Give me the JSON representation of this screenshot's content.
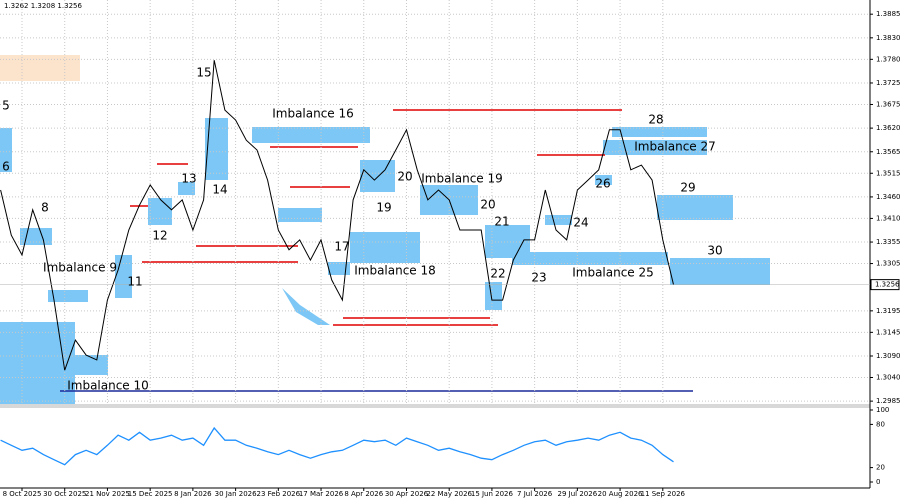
{
  "chart_data": [
    {
      "type": "line",
      "header": "1.3262 1.3208 1.3256",
      "categories": [
        null,
        null,
        "8 Oct 2025",
        null,
        null,
        null,
        "30 Oct 2025",
        null,
        null,
        null,
        "21 Nov 2025",
        null,
        null,
        null,
        "15 Dec 2025",
        null,
        null,
        null,
        "8 Jan 2026",
        null,
        null,
        null,
        "30 Jan 2026",
        null,
        null,
        null,
        "23 Feb 2026",
        null,
        null,
        null,
        "17 Mar 2026",
        null,
        null,
        null,
        "8 Apr 2026",
        null,
        null,
        null,
        "30 Apr 2026",
        null,
        null,
        null,
        "22 May 2026",
        null,
        null,
        null,
        "15 Jun 2026",
        null,
        null,
        null,
        "7 Jul 2026",
        null,
        null,
        null,
        "29 Jul 2026",
        null,
        null,
        null,
        "20 Aug 2026",
        null,
        null,
        null,
        "11 Sep 2026",
        null,
        null,
        null,
        null,
        null,
        null,
        null,
        null,
        null,
        null,
        null,
        null,
        null,
        null,
        null,
        null,
        null,
        null,
        null
      ],
      "values": [
        1.3476,
        1.3371,
        1.3325,
        1.343,
        1.336,
        1.322,
        1.3057,
        1.3127,
        1.3092,
        1.3081,
        1.322,
        1.329,
        1.3383,
        1.3441,
        1.3488,
        1.3453,
        1.343,
        1.3453,
        1.3383,
        1.3453,
        1.3778,
        1.3662,
        1.3639,
        1.3592,
        1.3569,
        1.3499,
        1.3383,
        1.3337,
        1.336,
        1.3313,
        1.336,
        1.3267,
        1.322,
        1.3453,
        1.3523,
        1.3499,
        1.3523,
        1.3569,
        1.3616,
        1.3523,
        1.3453,
        1.3476,
        1.3453,
        1.3383,
        1.3383,
        1.3383,
        1.322,
        1.322,
        1.3313,
        1.336,
        1.336,
        1.3476,
        1.3383,
        1.336,
        1.3476,
        1.3499,
        1.3523,
        1.3616,
        1.3616,
        1.3523,
        1.3534,
        1.3499,
        1.336,
        1.3256,
        null,
        null,
        null,
        null,
        null,
        null,
        null,
        null,
        null,
        null,
        null,
        null,
        null,
        null,
        null,
        null,
        null,
        null
      ],
      "color": "#000000",
      "ylim": [
        1.2976,
        1.3918
      ],
      "yticks": [
        1.3885,
        {
          "value": 1.383,
          "label": "1.3830"
        },
        {
          "value": 1.378,
          "label": "1.3780"
        },
        1.3725,
        1.3675,
        {
          "value": 1.362,
          "label": "1.3620"
        },
        1.3565,
        1.3515,
        {
          "value": 1.346,
          "label": "1.3460"
        },
        {
          "value": 1.341,
          "label": "1.3410"
        },
        1.3355,
        1.3305,
        1.3195,
        1.3145,
        {
          "value": 1.309,
          "label": "1.3090"
        },
        {
          "value": 1.304,
          "label": "1.3040"
        },
        1.2985
      ],
      "grid": true,
      "current_price": 1.3256,
      "annotations": [
        "5",
        "6",
        "8",
        "Imbalance 9",
        "Imbalance 10",
        "11",
        "12",
        "13",
        "14",
        "15",
        "Imbalance 16",
        "17",
        "Imbalance 18",
        "19",
        "20",
        "Imbalance 19",
        "20",
        "21",
        "22",
        "23",
        "24",
        "Imbalance 25",
        "26",
        "Imbalance 27",
        "28",
        "29",
        "30"
      ]
    },
    {
      "type": "line",
      "values": [
        58,
        51,
        44,
        47,
        38,
        31,
        24,
        38,
        44,
        38,
        51,
        65,
        58,
        69,
        58,
        61,
        65,
        58,
        61,
        51,
        75,
        58,
        58,
        51,
        47,
        42,
        38,
        44,
        38,
        33,
        38,
        42,
        44,
        51,
        58,
        56,
        58,
        51,
        61,
        56,
        51,
        44,
        47,
        42,
        38,
        33,
        31,
        38,
        44,
        51,
        56,
        58,
        51,
        56,
        58,
        61,
        58,
        65,
        69,
        61,
        58,
        51,
        38,
        28,
        null,
        null,
        null,
        null,
        null,
        null,
        null,
        null,
        null,
        null,
        null,
        null,
        null,
        null,
        null,
        null,
        null,
        null
      ],
      "color": "#1e90ff",
      "ylim": [
        0,
        100
      ],
      "yticks": [
        100,
        80,
        20,
        0
      ]
    }
  ]
}
